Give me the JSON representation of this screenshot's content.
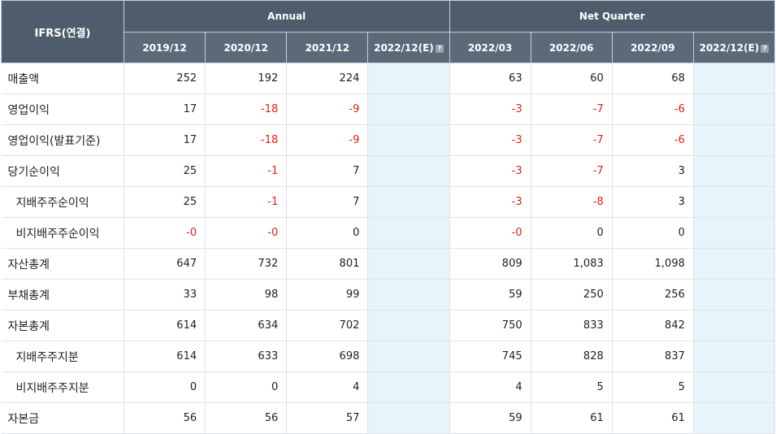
{
  "header": {
    "corner": "IFRS(연결)",
    "annual_label": "Annual",
    "quarter_label": "Net Quarter",
    "annual_periods": [
      "2019/12",
      "2020/12",
      "2021/12",
      "2022/12(E)"
    ],
    "quarter_periods": [
      "2022/03",
      "2022/06",
      "2022/09",
      "2022/12(E)"
    ],
    "help_glyph": "?"
  },
  "rows": [
    {
      "label": "매출액",
      "sub": false,
      "a": [
        "252",
        "192",
        "224",
        ""
      ],
      "q": [
        "63",
        "60",
        "68",
        ""
      ]
    },
    {
      "label": "영업이익",
      "sub": false,
      "a": [
        "17",
        "-18",
        "-9",
        ""
      ],
      "q": [
        "-3",
        "-7",
        "-6",
        ""
      ]
    },
    {
      "label": "영업이익(발표기준)",
      "sub": false,
      "a": [
        "17",
        "-18",
        "-9",
        ""
      ],
      "q": [
        "-3",
        "-7",
        "-6",
        ""
      ]
    },
    {
      "label": "당기순이익",
      "sub": false,
      "a": [
        "25",
        "-1",
        "7",
        ""
      ],
      "q": [
        "-3",
        "-7",
        "3",
        ""
      ]
    },
    {
      "label": "지배주주순이익",
      "sub": true,
      "a": [
        "25",
        "-1",
        "7",
        ""
      ],
      "q": [
        "-3",
        "-8",
        "3",
        ""
      ]
    },
    {
      "label": "비지배주주순이익",
      "sub": true,
      "a": [
        "-0",
        "-0",
        "0",
        ""
      ],
      "q": [
        "-0",
        "0",
        "0",
        ""
      ]
    },
    {
      "label": "자산총계",
      "sub": false,
      "a": [
        "647",
        "732",
        "801",
        ""
      ],
      "q": [
        "809",
        "1,083",
        "1,098",
        ""
      ]
    },
    {
      "label": "부채총계",
      "sub": false,
      "a": [
        "33",
        "98",
        "99",
        ""
      ],
      "q": [
        "59",
        "250",
        "256",
        ""
      ]
    },
    {
      "label": "자본총계",
      "sub": false,
      "a": [
        "614",
        "634",
        "702",
        ""
      ],
      "q": [
        "750",
        "833",
        "842",
        ""
      ]
    },
    {
      "label": "지배주주지분",
      "sub": true,
      "a": [
        "614",
        "633",
        "698",
        ""
      ],
      "q": [
        "745",
        "828",
        "837",
        ""
      ]
    },
    {
      "label": "비지배주주지분",
      "sub": true,
      "a": [
        "0",
        "0",
        "4",
        ""
      ],
      "q": [
        "4",
        "5",
        "5",
        ""
      ]
    },
    {
      "label": "자본금",
      "sub": false,
      "a": [
        "56",
        "56",
        "57",
        ""
      ],
      "q": [
        "59",
        "61",
        "61",
        ""
      ]
    }
  ],
  "colors": {
    "negative": "#e0201b",
    "estimate_bg": "#e8f4fb",
    "header_bg": "#4f5c6b"
  }
}
